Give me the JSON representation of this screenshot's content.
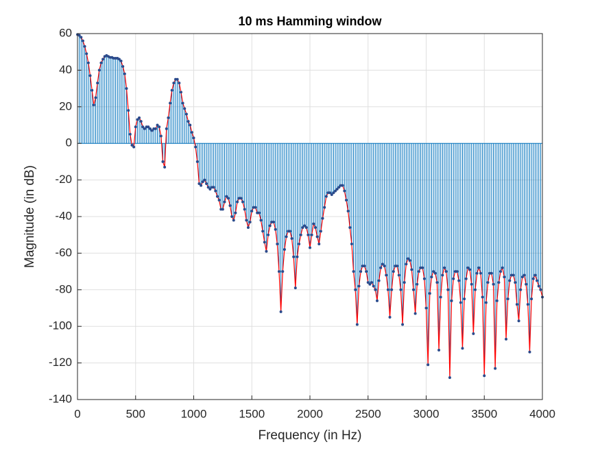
{
  "chart_data": {
    "type": "stem",
    "title": "10 ms Hamming window",
    "xlabel": "Frequency (in Hz)",
    "ylabel": "Magnitude (in dB)",
    "xlim": [
      0,
      4000
    ],
    "ylim": [
      -140,
      60
    ],
    "xticks": [
      0,
      500,
      1000,
      1500,
      2000,
      2500,
      3000,
      3500,
      4000
    ],
    "yticks": [
      -140,
      -120,
      -100,
      -80,
      -60,
      -40,
      -20,
      0,
      20,
      40,
      60
    ],
    "grid": true,
    "color": "#0072bd",
    "line_color": "#ff0000",
    "x": [
      0,
      15.625,
      31.25,
      46.875,
      62.5,
      78.125,
      93.75,
      109.375,
      125,
      140.625,
      156.25,
      171.875,
      187.5,
      203.125,
      218.75,
      234.375,
      250,
      265.625,
      281.25,
      296.875,
      312.5,
      328.125,
      343.75,
      359.375,
      375,
      390.625,
      406.25,
      421.875,
      437.5,
      453.125,
      468.75,
      484.375,
      500,
      515.625,
      531.25,
      546.875,
      562.5,
      578.125,
      593.75,
      609.375,
      625,
      640.625,
      656.25,
      671.875,
      687.5,
      703.125,
      718.75,
      734.375,
      750,
      765.625,
      781.25,
      796.875,
      812.5,
      828.125,
      843.75,
      859.375,
      875,
      890.625,
      906.25,
      921.875,
      937.5,
      953.125,
      968.75,
      984.375,
      1000,
      1015.625,
      1031.25,
      1046.875,
      1062.5,
      1078.125,
      1093.75,
      1109.375,
      1125,
      1140.625,
      1156.25,
      1171.875,
      1187.5,
      1203.125,
      1218.75,
      1234.375,
      1250,
      1265.625,
      1281.25,
      1296.875,
      1312.5,
      1328.125,
      1343.75,
      1359.375,
      1375,
      1390.625,
      1406.25,
      1421.875,
      1437.5,
      1453.125,
      1468.75,
      1484.375,
      1500,
      1515.625,
      1531.25,
      1546.875,
      1562.5,
      1578.125,
      1593.75,
      1609.375,
      1625,
      1640.625,
      1656.25,
      1671.875,
      1687.5,
      1703.125,
      1718.75,
      1734.375,
      1750,
      1765.625,
      1781.25,
      1796.875,
      1812.5,
      1828.125,
      1843.75,
      1859.375,
      1875,
      1890.625,
      1906.25,
      1921.875,
      1937.5,
      1953.125,
      1968.75,
      1984.375,
      2000,
      2015.625,
      2031.25,
      2046.875,
      2062.5,
      2078.125,
      2093.75,
      2109.375,
      2125,
      2140.625,
      2156.25,
      2171.875,
      2187.5,
      2203.125,
      2218.75,
      2234.375,
      2250,
      2265.625,
      2281.25,
      2296.875,
      2312.5,
      2328.125,
      2343.75,
      2359.375,
      2375,
      2390.625,
      2406.25,
      2421.875,
      2437.5,
      2453.125,
      2468.75,
      2484.375,
      2500,
      2515.625,
      2531.25,
      2546.875,
      2562.5,
      2578.125,
      2593.75,
      2609.375,
      2625,
      2640.625,
      2656.25,
      2671.875,
      2687.5,
      2703.125,
      2718.75,
      2734.375,
      2750,
      2765.625,
      2781.25,
      2796.875,
      2812.5,
      2828.125,
      2843.75,
      2859.375,
      2875,
      2890.625,
      2906.25,
      2921.875,
      2937.5,
      2953.125,
      2968.75,
      2984.375,
      3000,
      3015.625,
      3031.25,
      3046.875,
      3062.5,
      3078.125,
      3093.75,
      3109.375,
      3125,
      3140.625,
      3156.25,
      3171.875,
      3187.5,
      3203.125,
      3218.75,
      3234.375,
      3250,
      3265.625,
      3281.25,
      3296.875,
      3312.5,
      3328.125,
      3343.75,
      3359.375,
      3375,
      3390.625,
      3406.25,
      3421.875,
      3437.5,
      3453.125,
      3468.75,
      3484.375,
      3500,
      3515.625,
      3531.25,
      3546.875,
      3562.5,
      3578.125,
      3593.75,
      3609.375,
      3625,
      3640.625,
      3656.25,
      3671.875,
      3687.5,
      3703.125,
      3718.75,
      3734.375,
      3750,
      3765.625,
      3781.25,
      3796.875,
      3812.5,
      3828.125,
      3843.75,
      3859.375,
      3875,
      3890.625,
      3906.25,
      3921.875,
      3937.5,
      3953.125,
      3968.75,
      3984.375,
      4000
    ],
    "values": [
      59.5,
      59,
      58,
      56,
      53,
      49,
      44,
      37,
      29,
      21,
      25,
      33,
      40,
      44,
      46,
      47.5,
      48,
      47.5,
      47,
      47,
      46.5,
      46.5,
      46.5,
      46,
      45,
      42,
      38,
      30,
      18,
      5,
      -1,
      -2,
      9,
      13,
      14,
      12,
      9,
      8,
      9,
      9,
      8,
      7,
      8,
      8,
      10,
      9,
      4,
      -10,
      -13,
      8,
      14,
      22,
      29,
      33,
      35,
      35,
      33,
      28,
      22,
      19,
      16,
      12,
      10,
      6,
      3,
      -2,
      -10,
      -22,
      -23,
      -21,
      -20,
      -22,
      -24,
      -25,
      -24,
      -24,
      -26,
      -29,
      -31,
      -36,
      -36,
      -32,
      -29,
      -30,
      -34,
      -40,
      -42,
      -38,
      -32,
      -30,
      -30,
      -32,
      -36,
      -42,
      -46,
      -43,
      -37,
      -35,
      -35,
      -38,
      -38,
      -42,
      -48,
      -54,
      -59,
      -50,
      -45,
      -43,
      -43,
      -47,
      -55,
      -70,
      -92,
      -70,
      -58,
      -51,
      -48,
      -48,
      -52,
      -62,
      -79,
      -62,
      -55,
      -50,
      -46,
      -45,
      -46,
      -50,
      -57,
      -50,
      -44,
      -46,
      -51,
      -55,
      -48,
      -41,
      -35,
      -29,
      -27,
      -27,
      -28,
      -27,
      -26,
      -25,
      -24,
      -23,
      -23,
      -26,
      -31,
      -37,
      -46,
      -55,
      -70,
      -80,
      -99,
      -78,
      -70,
      -67,
      -67,
      -70,
      -76,
      -77,
      -76,
      -78,
      -80,
      -86,
      -75,
      -68,
      -66,
      -67,
      -72,
      -80,
      -95,
      -80,
      -70,
      -67,
      -67,
      -72,
      -80,
      -99,
      -76,
      -66,
      -63,
      -64,
      -69,
      -80,
      -93,
      -77,
      -70,
      -68,
      -68,
      -74,
      -90,
      -121,
      -82,
      -73,
      -70,
      -71,
      -76,
      -113,
      -84,
      -72,
      -68,
      -70,
      -80,
      -128,
      -86,
      -74,
      -70,
      -70,
      -75,
      -87,
      -112,
      -85,
      -74,
      -68,
      -69,
      -77,
      -104,
      -80,
      -71,
      -68,
      -71,
      -84,
      -127,
      -87,
      -76,
      -71,
      -71,
      -77,
      -123,
      -86,
      -76,
      -70,
      -68,
      -73,
      -107,
      -85,
      -75,
      -72,
      -72,
      -76,
      -88,
      -97,
      -80,
      -73,
      -72,
      -77,
      -88,
      -114,
      -85,
      -74,
      -72,
      -75,
      -78,
      -80,
      -84
    ]
  }
}
